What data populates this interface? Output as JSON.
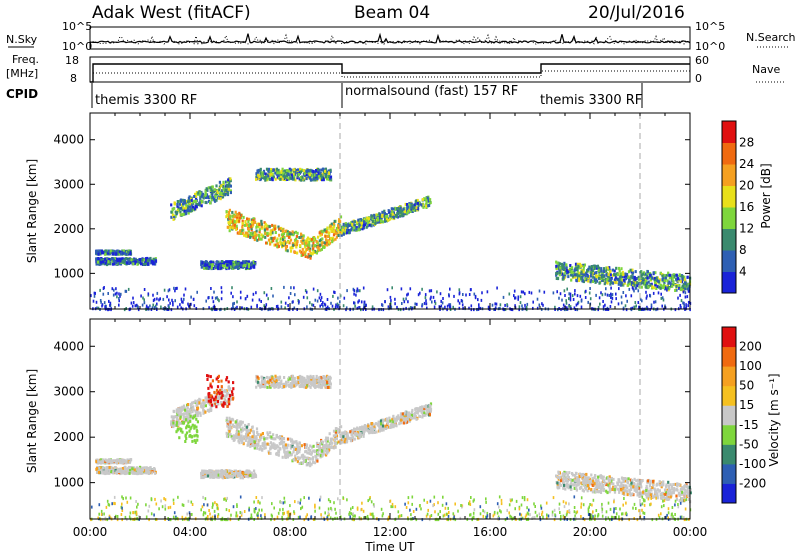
{
  "header": {
    "station": "Adak West (fitACF)",
    "beam": "Beam 04",
    "date": "20/Jul/2016"
  },
  "status_panels": {
    "nsky_label": "N.Sky",
    "nsky_ticks": [
      "10^5",
      "10^0"
    ],
    "nsearch_label": "N.Search",
    "nsearch_ticks": [
      "10^5",
      "10^0"
    ],
    "freq_label_1": "Freq.",
    "freq_label_2": "[MHz]",
    "freq_ticks": [
      "18",
      "8"
    ],
    "nave_label": "Nave",
    "nave_ticks": [
      "60",
      "0"
    ],
    "cpid_label": "CPID",
    "cpid_segments": [
      {
        "label": "themis 3300 RF",
        "start": 0,
        "end": 10
      },
      {
        "label": "normalsound (fast) 157 RF",
        "start": 10,
        "end": 18
      },
      {
        "label": "themis 3300 RF",
        "start": 18,
        "end": 24
      }
    ]
  },
  "time_axis": {
    "label": "Time UT",
    "ticks": [
      "00:00",
      "04:00",
      "08:00",
      "12:00",
      "16:00",
      "20:00",
      "00:00"
    ]
  },
  "chart_data": [
    {
      "type": "heatmap",
      "name": "power",
      "ylabel": "Slant Range [km]",
      "yticks": [
        1000,
        2000,
        3000,
        4000
      ],
      "ylim": [
        200,
        4600
      ],
      "xlim": [
        0,
        24
      ],
      "colorbar_label": "Power [dB]",
      "colorbar_ticks": [
        "4",
        "8",
        "12",
        "16",
        "20",
        "24",
        "28"
      ],
      "colorbar_colors": [
        "#1a23d8",
        "#2e5fb3",
        "#3a8a6e",
        "#7ed63c",
        "#e8e01a",
        "#f5a020",
        "#f06a10",
        "#e01010"
      ],
      "dashed_times": [
        10,
        22
      ],
      "features": [
        {
          "t": [
            0.2,
            2.6
          ],
          "r_center": [
            1300,
            1300
          ],
          "width": 140,
          "level": "low"
        },
        {
          "t": [
            0.2,
            1.6
          ],
          "r_center": [
            1500,
            1500
          ],
          "width": 80,
          "level": "low"
        },
        {
          "t": [
            3.2,
            5.6
          ],
          "r_center": [
            2400,
            3000
          ],
          "width": 380,
          "level": "mid"
        },
        {
          "t": [
            5.4,
            8.8
          ],
          "r_center": [
            2250,
            1600
          ],
          "width": 480,
          "level": "high"
        },
        {
          "t": [
            8.8,
            10.0
          ],
          "r_center": [
            1600,
            2100
          ],
          "width": 420,
          "level": "high"
        },
        {
          "t": [
            10.0,
            13.6
          ],
          "r_center": [
            2000,
            2650
          ],
          "width": 240,
          "level": "mid"
        },
        {
          "t": [
            6.6,
            9.6
          ],
          "r_center": [
            3250,
            3250
          ],
          "width": 250,
          "level": "mid"
        },
        {
          "t": [
            4.4,
            6.6
          ],
          "r_center": [
            1220,
            1220
          ],
          "width": 160,
          "level": "low"
        },
        {
          "t": [
            18.6,
            24.0
          ],
          "r_center": [
            1100,
            800
          ],
          "width": 380,
          "level": "mid"
        }
      ]
    },
    {
      "type": "heatmap",
      "name": "velocity",
      "ylabel": "Slant Range [km]",
      "yticks": [
        1000,
        2000,
        3000,
        4000
      ],
      "ylim": [
        200,
        4600
      ],
      "xlim": [
        0,
        24
      ],
      "colorbar_label": "Velocity [m s⁻¹]",
      "colorbar_ticks": [
        "200",
        "100",
        "50",
        "15",
        "-15",
        "-50",
        "-100",
        "-200"
      ],
      "colorbar_colors": [
        "#1a23d8",
        "#2e5fb3",
        "#3a8a6e",
        "#7ed63c",
        "#c8c8c8",
        "#f5c020",
        "#f5a020",
        "#f06a10",
        "#e01010"
      ],
      "dashed_times": [
        10,
        22
      ]
    }
  ]
}
